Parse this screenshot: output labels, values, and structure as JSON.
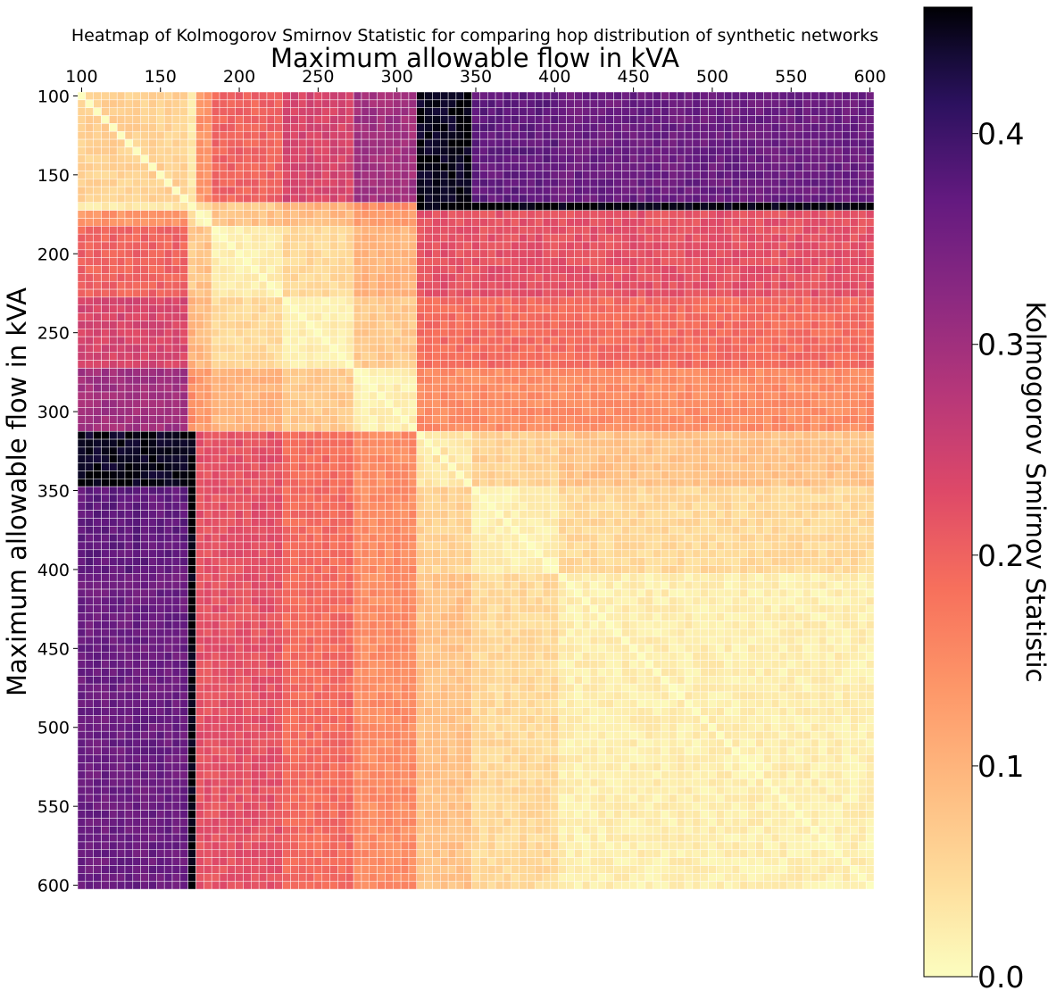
{
  "chart_data": {
    "type": "heatmap",
    "title": "Heatmap of Kolmogorov Smirnov Statistic for comparing hop distribution of synthetic networks",
    "xlabel": "Maximum allowable flow in kVA",
    "ylabel": "Maximum allowable flow in kVA",
    "x_axis_position": "top",
    "xlim": [
      100,
      600
    ],
    "ylim": [
      600,
      100
    ],
    "xticks": [
      "100",
      "150",
      "200",
      "250",
      "300",
      "350",
      "400",
      "450",
      "500",
      "550",
      "600"
    ],
    "yticks": [
      "100",
      "150",
      "200",
      "250",
      "300",
      "350",
      "400",
      "450",
      "500",
      "550",
      "600"
    ],
    "cell_step_kva": 5,
    "colormap": "magma_r",
    "colorbar": {
      "label": "Kolmogorov Smirnov Statistic",
      "range": [
        0.0,
        0.46
      ],
      "ticks": [
        "0.0",
        "0.1",
        "0.2",
        "0.3",
        "0.4"
      ]
    },
    "groups": [
      {
        "name": "A",
        "from": 100,
        "to": 170
      },
      {
        "name": "B",
        "from": 170,
        "to": 175
      },
      {
        "name": "C",
        "from": 175,
        "to": 185
      },
      {
        "name": "D",
        "from": 185,
        "to": 230
      },
      {
        "name": "E",
        "from": 230,
        "to": 275
      },
      {
        "name": "F",
        "from": 275,
        "to": 315
      },
      {
        "name": "G",
        "from": 315,
        "to": 350
      },
      {
        "name": "H",
        "from": 350,
        "to": 405
      },
      {
        "name": "I",
        "from": 405,
        "to": 605
      }
    ],
    "group_values": [
      [
        0.06,
        0.03,
        0.14,
        0.2,
        0.24,
        0.3,
        0.45,
        0.37,
        0.36
      ],
      [
        0.03,
        0.0,
        0.05,
        0.07,
        0.1,
        0.15,
        0.46,
        0.46,
        0.46
      ],
      [
        0.14,
        0.05,
        0.0,
        0.08,
        0.09,
        0.13,
        0.22,
        0.22,
        0.22
      ],
      [
        0.2,
        0.07,
        0.08,
        0.02,
        0.05,
        0.1,
        0.22,
        0.22,
        0.22
      ],
      [
        0.24,
        0.1,
        0.09,
        0.05,
        0.02,
        0.07,
        0.19,
        0.19,
        0.19
      ],
      [
        0.3,
        0.15,
        0.13,
        0.1,
        0.07,
        0.02,
        0.15,
        0.15,
        0.15
      ],
      [
        0.45,
        0.46,
        0.22,
        0.22,
        0.19,
        0.15,
        0.03,
        0.06,
        0.08
      ],
      [
        0.37,
        0.46,
        0.22,
        0.22,
        0.19,
        0.15,
        0.06,
        0.02,
        0.05
      ],
      [
        0.36,
        0.46,
        0.22,
        0.22,
        0.19,
        0.15,
        0.08,
        0.05,
        0.02
      ]
    ]
  }
}
